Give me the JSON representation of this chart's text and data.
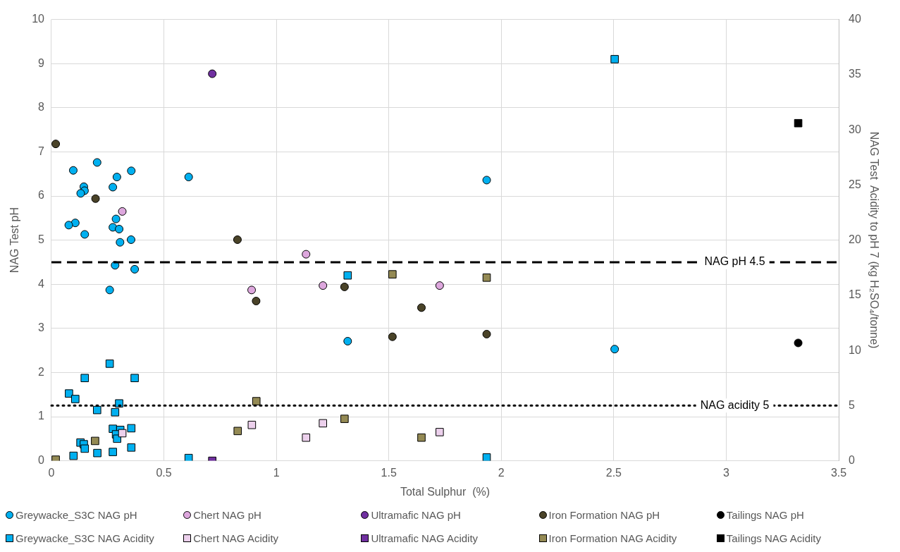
{
  "chart_data": {
    "type": "scatter",
    "xlabel": "Total Sulphur  (%)",
    "ylabel": "NAG Test pH",
    "y2label": "NAG Test  Acidity to pH 7 (kg H₂SO₄/tonne)",
    "xlim": [
      0,
      3.5
    ],
    "xticks": [
      0,
      0.5,
      1,
      1.5,
      2,
      2.5,
      3,
      3.5
    ],
    "ylim": [
      0,
      10
    ],
    "yticks": [
      0,
      1,
      2,
      3,
      4,
      5,
      6,
      7,
      8,
      9,
      10
    ],
    "y2lim": [
      0,
      40
    ],
    "y2ticks": [
      0,
      5,
      10,
      15,
      20,
      25,
      30,
      35,
      40
    ],
    "grid": true,
    "legend": "bottom",
    "ref_lines": [
      {
        "axis": "y",
        "value": 4.5,
        "label": "NAG pH 4.5",
        "line_style": "dashed",
        "color": "#000000"
      },
      {
        "axis": "y2",
        "value": 5,
        "label": "NAG acidity 5",
        "line_style": "dotted",
        "color": "#000000"
      }
    ],
    "series": [
      {
        "name": "Greywacke_S3C NAG pH",
        "marker": "circle",
        "color": "#00b0f0",
        "x": [
          0.097,
          0.203,
          0.355,
          0.291,
          0.61,
          0.273,
          0.144,
          0.147,
          0.13,
          0.287,
          0.106,
          0.077,
          0.273,
          0.301,
          0.148,
          0.354,
          0.305,
          0.283,
          0.37,
          0.259,
          1.935,
          1.317,
          2.504
        ],
        "values": [
          6.58,
          6.76,
          6.57,
          6.43,
          6.43,
          6.2,
          6.21,
          6.12,
          6.06,
          5.48,
          5.39,
          5.34,
          5.29,
          5.25,
          5.13,
          5.01,
          4.95,
          4.43,
          4.34,
          3.87,
          6.36,
          2.71,
          2.53
        ]
      },
      {
        "name": "Chert NAG pH",
        "marker": "circle",
        "color": "#dda7dd",
        "x": [
          0.315,
          0.89,
          1.132,
          1.207,
          1.726
        ],
        "values": [
          5.65,
          3.87,
          4.68,
          3.97,
          3.97
        ]
      },
      {
        "name": "Ultramafic NAG pH",
        "marker": "circle",
        "color": "#7030a0",
        "x": [
          0.715
        ],
        "values": [
          8.77
        ]
      },
      {
        "name": "Iron Formation NAG pH",
        "marker": "circle",
        "color": "#4a4328",
        "x": [
          0.019,
          0.196,
          0.827,
          0.91,
          1.303,
          1.645,
          1.516,
          1.935
        ],
        "values": [
          7.18,
          5.94,
          5.01,
          3.62,
          3.94,
          3.47,
          2.81,
          2.87
        ]
      },
      {
        "name": "Tailings NAG pH",
        "marker": "circle",
        "color": "#000000",
        "x": [
          3.32
        ],
        "values": [
          2.67
        ]
      },
      {
        "name": "Greywacke_S3C NAG Acidity",
        "marker": "square",
        "axis": "y2",
        "color": "#00b0f0",
        "x": [
          0.259,
          0.148,
          0.37,
          0.078,
          0.106,
          0.301,
          0.203,
          0.283,
          0.273,
          0.306,
          0.355,
          0.287,
          0.292,
          0.129,
          0.144,
          0.148,
          0.355,
          0.204,
          0.273,
          0.098,
          0.61,
          1.317,
          1.935,
          2.504
        ],
        "values": [
          8.8,
          7.5,
          7.5,
          6.1,
          5.6,
          5.2,
          4.6,
          4.4,
          2.9,
          2.8,
          2.95,
          2.4,
          2.0,
          1.65,
          1.5,
          1.1,
          1.2,
          0.7,
          0.8,
          0.45,
          0.25,
          16.8,
          0.3,
          36.4
        ]
      },
      {
        "name": "Chert NAG Acidity",
        "marker": "square",
        "axis": "y2",
        "color": "#ecd0ec",
        "x": [
          0.315,
          0.891,
          1.132,
          1.207,
          1.726
        ],
        "values": [
          2.5,
          3.25,
          2.1,
          3.4,
          2.6
        ]
      },
      {
        "name": "Ultramafic NAG Acidity",
        "marker": "square",
        "axis": "y2",
        "color": "#7030a0",
        "x": [
          0.715
        ],
        "values": [
          0
        ]
      },
      {
        "name": "Iron Formation NAG Acidity",
        "marker": "square",
        "axis": "y2",
        "color": "#948a54",
        "x": [
          0.019,
          0.194,
          0.828,
          0.911,
          1.303,
          1.516,
          1.645,
          1.935
        ],
        "values": [
          0.1,
          1.8,
          2.7,
          5.4,
          3.8,
          16.9,
          2.1,
          16.6
        ]
      },
      {
        "name": "Tailings NAG Acidity",
        "marker": "square",
        "axis": "y2",
        "color": "#000000",
        "x": [
          3.32
        ],
        "values": [
          30.6
        ]
      }
    ]
  }
}
